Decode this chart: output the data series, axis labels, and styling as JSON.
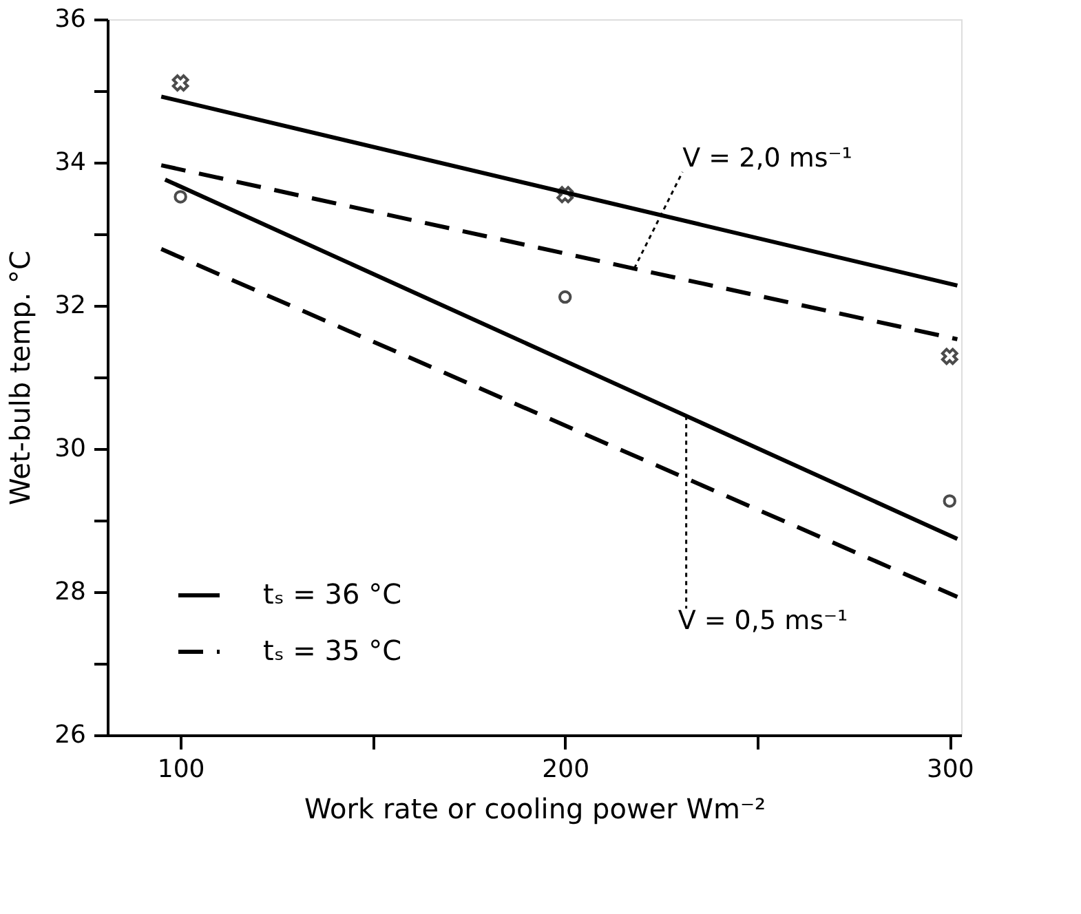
{
  "chart_data": {
    "type": "line",
    "xlabel": "Work rate or cooling power Wm⁻²",
    "ylabel": "Wet-bulb temp.   °C",
    "xlim": [
      81,
      303
    ],
    "xticks": [
      100,
      {
        "value": 150,
        "label": null
      },
      200,
      {
        "value": 250,
        "label": null
      },
      300
    ],
    "ylim": [
      26,
      36
    ],
    "yticks": [
      26,
      {
        "value": 27,
        "label": null
      },
      28,
      {
        "value": 29,
        "label": null
      },
      30,
      {
        "value": 31,
        "label": null
      },
      32,
      {
        "value": 33,
        "label": null
      },
      34,
      {
        "value": 35,
        "label": null
      },
      36
    ],
    "grid": false,
    "legend": "bottom left",
    "series": [
      {
        "name": "tₛ = 36 °C",
        "line_style": "solid",
        "color": "#000000",
        "x": [
          95,
          302
        ],
        "values": [
          34.92,
          32.28
        ]
      },
      {
        "name": "tₛ = 35 °C",
        "line_style": "dashed",
        "color": "#000000",
        "x": [
          95,
          302
        ],
        "values": [
          33.96,
          31.53
        ]
      },
      {
        "line_style": "solid",
        "color": "#000000",
        "x": [
          96,
          302
        ],
        "values": [
          33.76,
          28.74
        ]
      },
      {
        "line_style": "dashed",
        "color": "#000000",
        "x": [
          95,
          302
        ],
        "values": [
          32.79,
          27.93
        ]
      },
      {
        "type": "scatter",
        "marker": "cross",
        "color": "#000000",
        "x": [
          100,
          200,
          300
        ],
        "values": [
          35.11,
          33.55,
          31.29
        ]
      },
      {
        "type": "scatter",
        "marker": "circle",
        "color": "#000000",
        "x": [
          100,
          200,
          300
        ],
        "values": [
          33.52,
          32.12,
          29.27
        ]
      }
    ],
    "annotations": [
      {
        "text": "V = 2,0 ms⁻¹",
        "x": 218,
        "y": 32.52
      },
      {
        "text": "V = 0,5 ms⁻¹",
        "x": 231.5,
        "y": 30.46
      }
    ]
  }
}
